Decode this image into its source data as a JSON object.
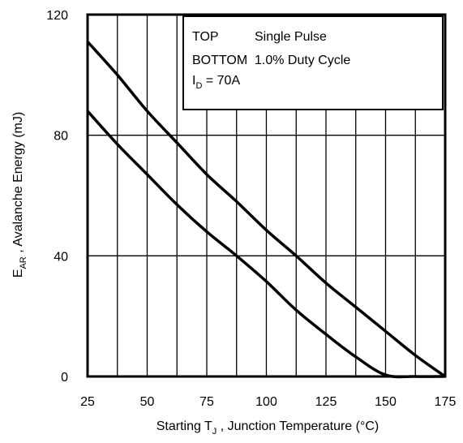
{
  "chart_data": {
    "type": "line",
    "xlabel": {
      "main": "Starting T",
      "sub": "J",
      "rest": " , Junction Temperature (°C)"
    },
    "ylabel": {
      "main": "E",
      "sub": "AR",
      "rest": " , Avalanche Energy (mJ)"
    },
    "xlim": [
      25,
      175
    ],
    "ylim": [
      0,
      120
    ],
    "x_ticks": [
      "25",
      "50",
      "75",
      "100",
      "125",
      "150",
      "175"
    ],
    "y_ticks": [
      "0",
      "40",
      "80",
      "120"
    ],
    "grid": {
      "x_minor_step": 12.5,
      "y_major_step": 40
    },
    "legend": {
      "rows": [
        {
          "key": "TOP",
          "value": "Single Pulse"
        },
        {
          "key": "BOTTOM",
          "value": "1.0% Duty Cycle"
        }
      ],
      "id_label": {
        "main": "I",
        "sub": "D",
        "rest": " = 70A"
      },
      "placement": "top-right"
    },
    "series": [
      {
        "x": [
          25,
          37.5,
          50,
          62.5,
          75,
          87.5,
          100,
          112.5,
          125,
          137.5,
          150,
          162.5,
          175
        ],
        "values": [
          111,
          100,
          88,
          77.5,
          67,
          58,
          48.5,
          40,
          31,
          23,
          15,
          7,
          0
        ]
      },
      {
        "x": [
          25,
          37.5,
          50,
          62.5,
          75,
          87.5,
          100,
          112.5,
          125,
          137.5,
          150,
          162.5,
          175
        ],
        "values": [
          88,
          77,
          67,
          57,
          48,
          40,
          31.5,
          22,
          14,
          6.5,
          0.5,
          0,
          0
        ]
      }
    ]
  }
}
